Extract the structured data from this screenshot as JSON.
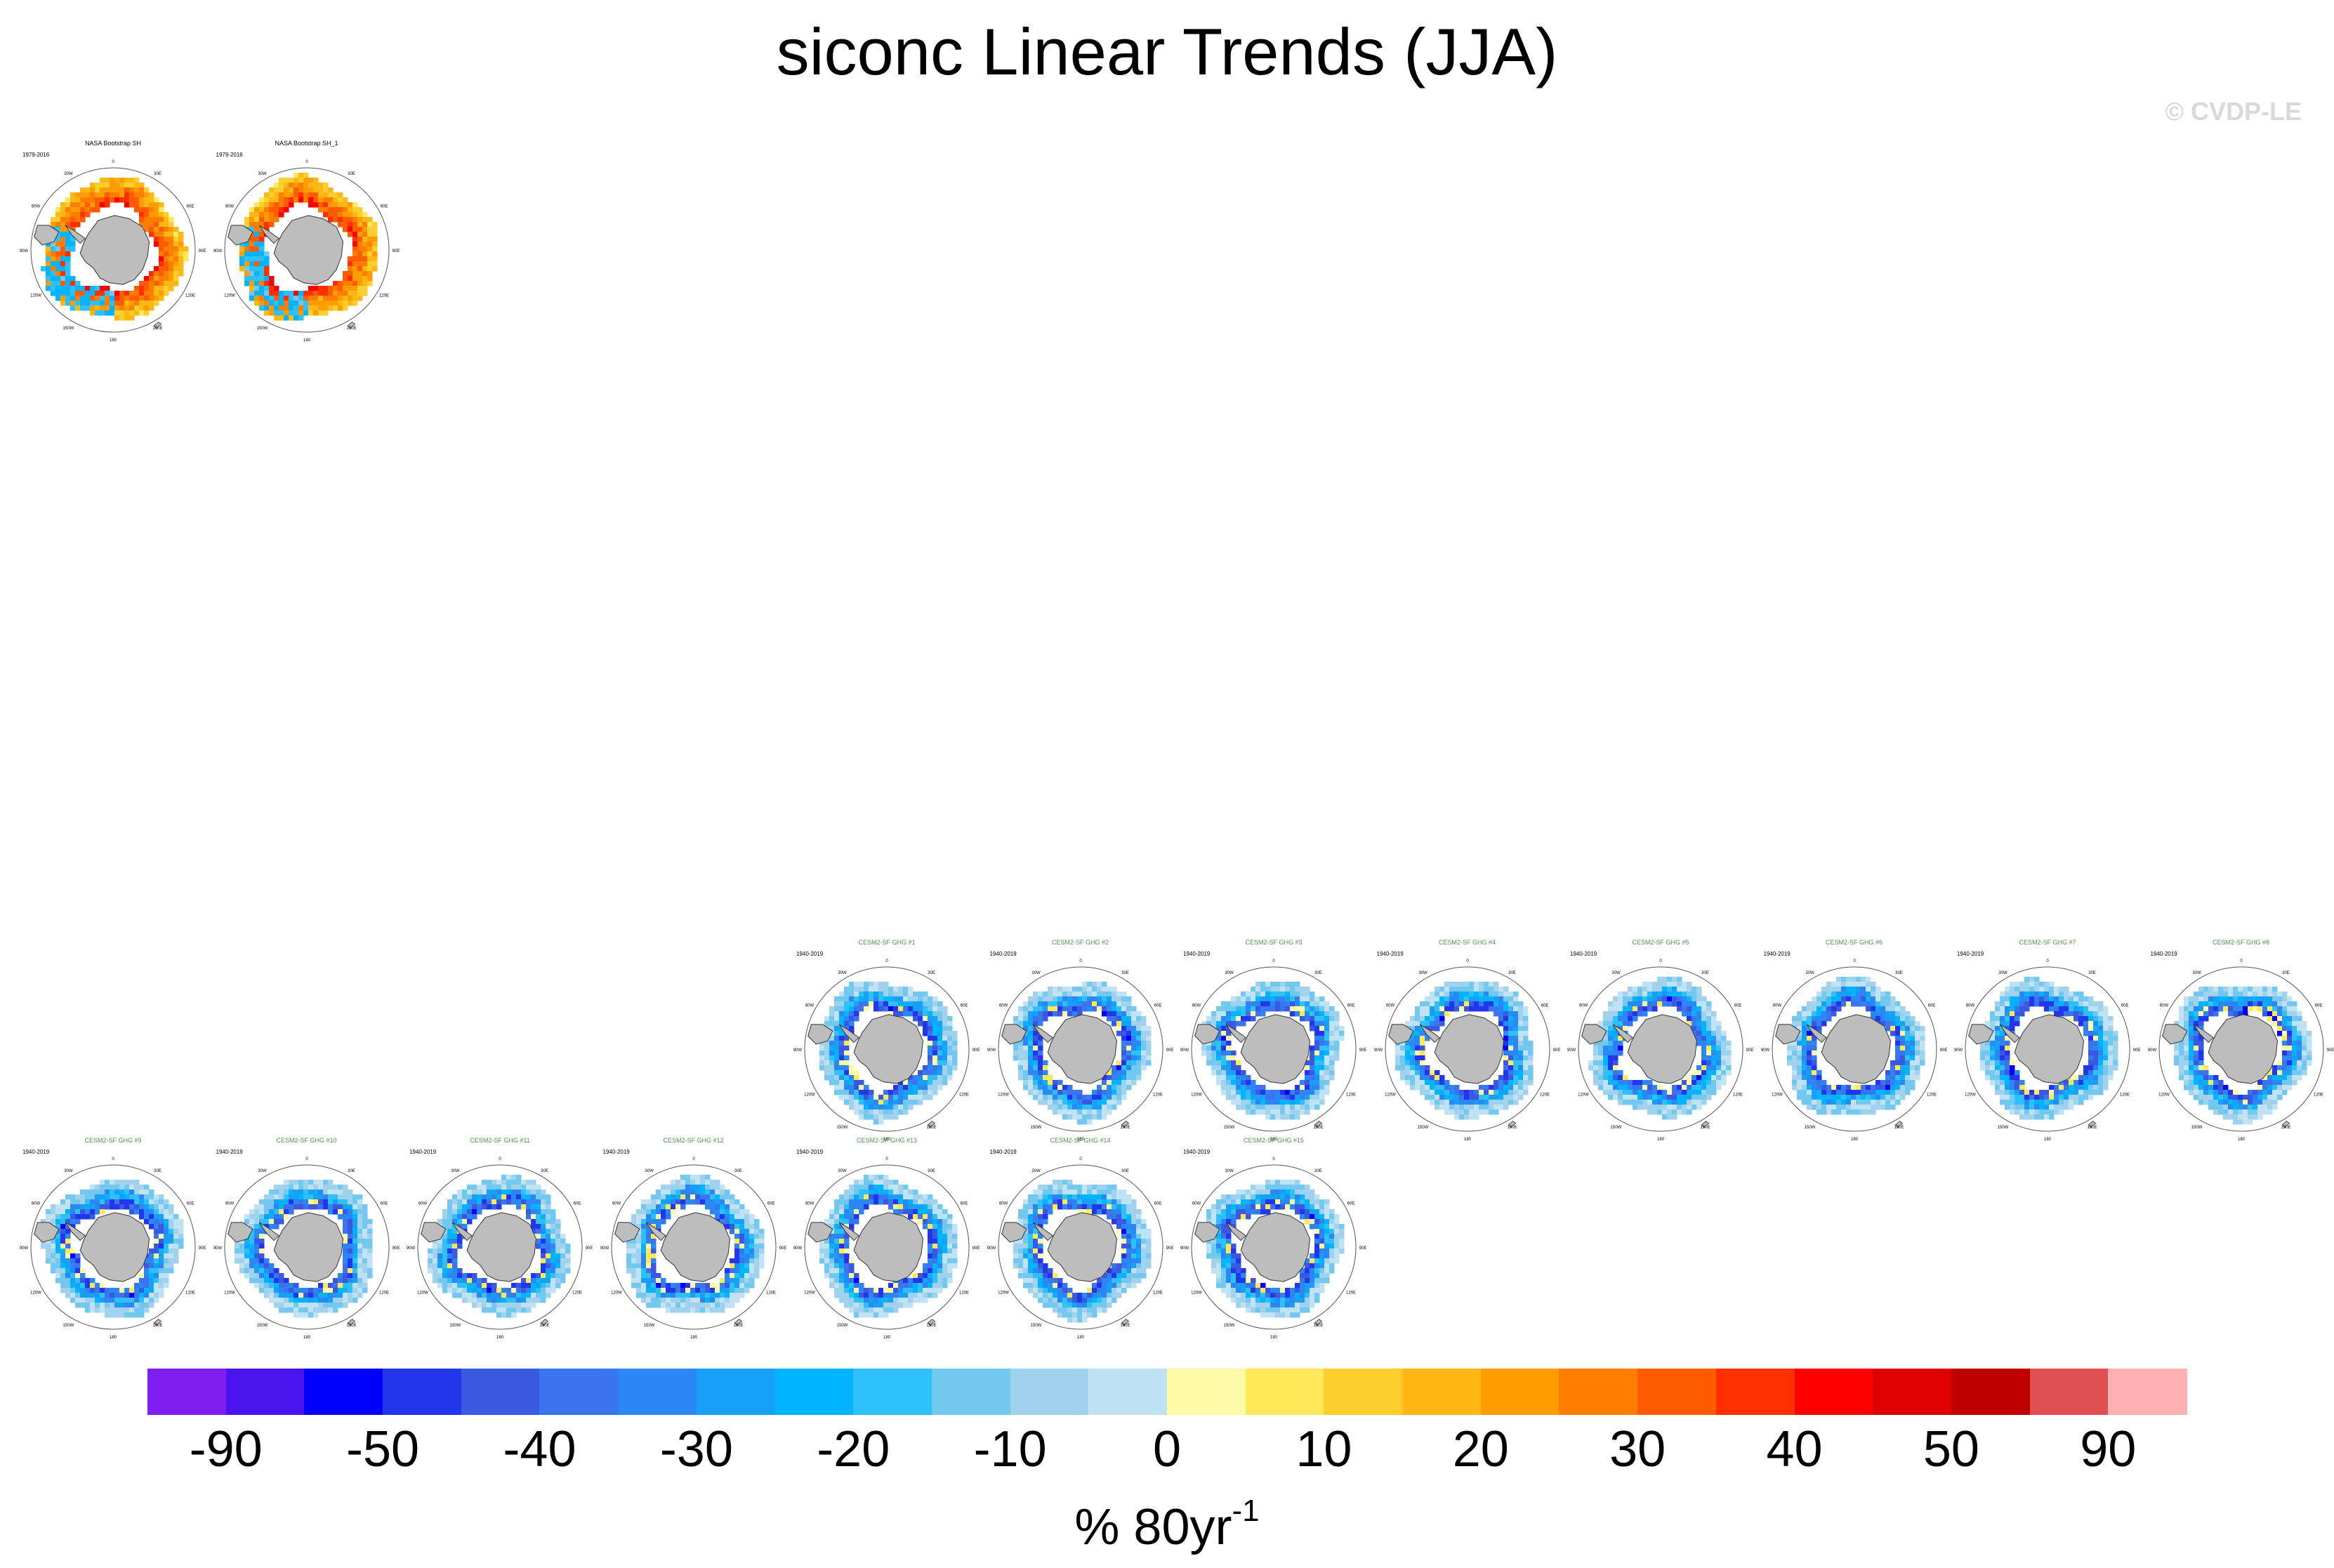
{
  "title": "siconc Linear Trends (JJA)",
  "copyright": "© CVDP-LE",
  "units": {
    "text": "% 80yr",
    "superscript": "-1"
  },
  "panels": [
    {
      "title": "NASA Bootstrap SH",
      "period": "1979-2016",
      "row": 0,
      "col": 0,
      "style": "observed",
      "title_color": "#000000"
    },
    {
      "title": "NASA Bootstrap SH_1",
      "period": "1979-2016",
      "row": 0,
      "col": 1,
      "style": "observed",
      "title_color": "#000000"
    },
    {
      "title": "CESM2-SF GHG #1",
      "period": "1940-2019",
      "row": 1,
      "col": 4,
      "style": "model",
      "title_color": "#4f8f4f"
    },
    {
      "title": "CESM2-SF GHG #2",
      "period": "1940-2019",
      "row": 1,
      "col": 5,
      "style": "model",
      "title_color": "#4f8f4f"
    },
    {
      "title": "CESM2-SF GHG #3",
      "period": "1940-2019",
      "row": 1,
      "col": 6,
      "style": "model",
      "title_color": "#4f8f4f"
    },
    {
      "title": "CESM2-SF GHG #4",
      "period": "1940-2019",
      "row": 1,
      "col": 7,
      "style": "model",
      "title_color": "#4f8f4f"
    },
    {
      "title": "CESM2-SF GHG #5",
      "period": "1940-2019",
      "row": 1,
      "col": 8,
      "style": "model",
      "title_color": "#4f8f4f"
    },
    {
      "title": "CESM2-SF GHG #6",
      "period": "1940-2019",
      "row": 1,
      "col": 9,
      "style": "model",
      "title_color": "#4f8f4f"
    },
    {
      "title": "CESM2-SF GHG #7",
      "period": "1940-2019",
      "row": 1,
      "col": 10,
      "style": "model",
      "title_color": "#4f8f4f"
    },
    {
      "title": "CESM2-SF GHG #8",
      "period": "1940-2019",
      "row": 1,
      "col": 11,
      "style": "model",
      "title_color": "#4f8f4f"
    },
    {
      "title": "CESM2-SF GHG #9",
      "period": "1940-2019",
      "row": 2,
      "col": 0,
      "style": "model",
      "title_color": "#4f8f4f"
    },
    {
      "title": "CESM2-SF GHG #10",
      "period": "1940-2019",
      "row": 2,
      "col": 1,
      "style": "model",
      "title_color": "#4f8f4f"
    },
    {
      "title": "CESM2-SF GHG #11",
      "period": "1940-2019",
      "row": 2,
      "col": 2,
      "style": "model",
      "title_color": "#4f8f4f"
    },
    {
      "title": "CESM2-SF GHG #12",
      "period": "1940-2019",
      "row": 2,
      "col": 3,
      "style": "model",
      "title_color": "#4f8f4f"
    },
    {
      "title": "CESM2-SF GHG #13",
      "period": "1940-2019",
      "row": 2,
      "col": 4,
      "style": "model",
      "title_color": "#4f8f4f"
    },
    {
      "title": "CESM2-SF GHG #14",
      "period": "1940-2019",
      "row": 2,
      "col": 5,
      "style": "model",
      "title_color": "#4f8f4f"
    },
    {
      "title": "CESM2-SF GHG #15",
      "period": "1940-2019",
      "row": 2,
      "col": 6,
      "style": "model",
      "title_color": "#4f8f4f"
    }
  ],
  "longitude_labels": [
    "0",
    "30E",
    "60E",
    "90E",
    "120E",
    "150E",
    "180",
    "150W",
    "120W",
    "90W",
    "60W",
    "30W"
  ],
  "colorbar": {
    "colors": [
      "#7f1ef2",
      "#4a12ec",
      "#0000ff",
      "#2236ec",
      "#3b59e0",
      "#3a74ef",
      "#2b86f6",
      "#18a0f8",
      "#00b4ff",
      "#2ec0f8",
      "#73c8f0",
      "#a0d2ee",
      "#bfe2f4",
      "#fefaa8",
      "#ffe859",
      "#fdcf2c",
      "#ffb713",
      "#ff9c00",
      "#ff7d00",
      "#ff5b00",
      "#ff2f00",
      "#ff0000",
      "#df0000",
      "#c00000",
      "#e05050",
      "#ffb0b0"
    ],
    "labels": [
      "-90",
      "-50",
      "-40",
      "-30",
      "-20",
      "-10",
      "0",
      "10",
      "20",
      "30",
      "40",
      "50",
      "90"
    ]
  }
}
